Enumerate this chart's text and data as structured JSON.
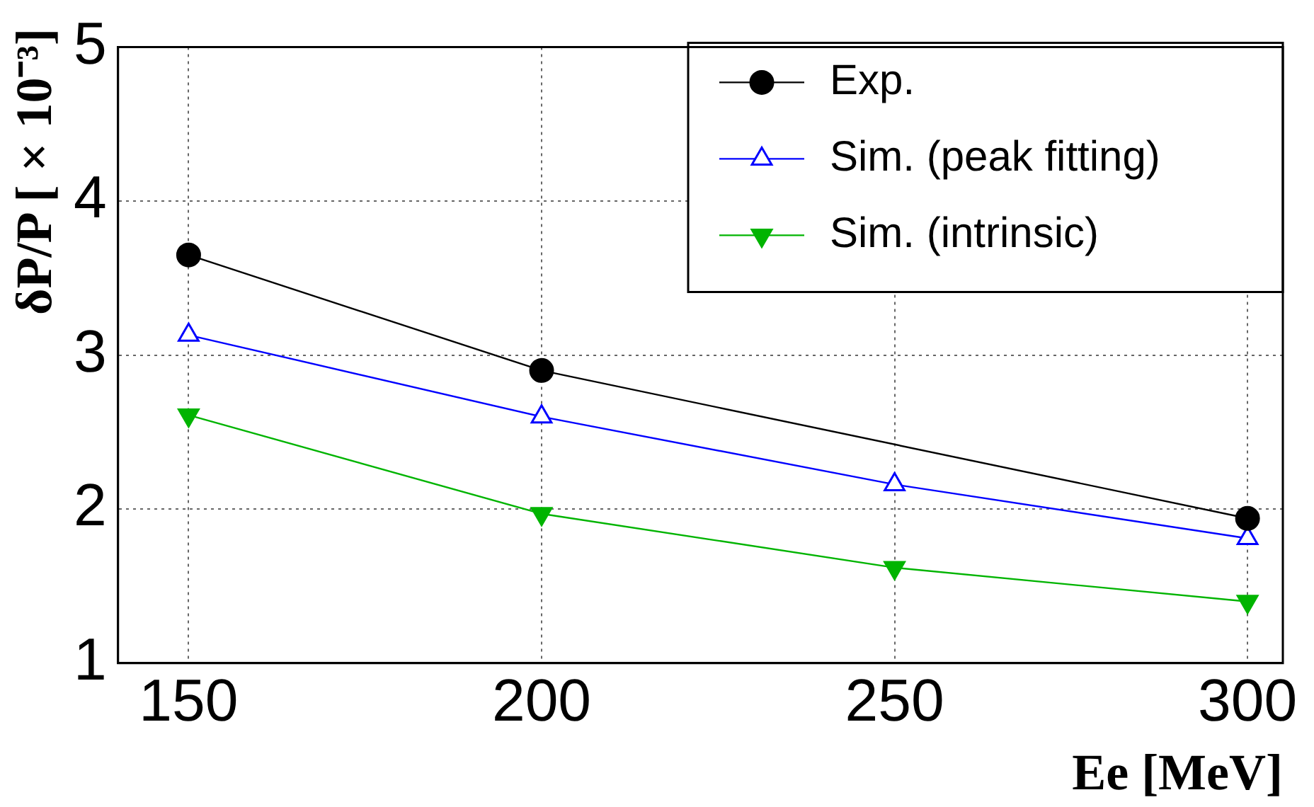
{
  "chart_data": {
    "type": "line",
    "xlabel": "Ee [MeV]",
    "ylabel": "δP/P [×10⁻³]",
    "x": [
      150,
      200,
      250,
      300
    ],
    "series": [
      {
        "name": "Exp.",
        "color": "#000000",
        "marker": "circle",
        "values": [
          3.65,
          2.9,
          null,
          1.94
        ]
      },
      {
        "name": "Sim. (peak fitting)",
        "color": "#0000ff",
        "marker": "triangle",
        "values": [
          3.13,
          2.6,
          2.16,
          1.81
        ]
      },
      {
        "name": "Sim. (intrinsic)",
        "color": "#00b400",
        "marker": "triangle-down",
        "values": [
          2.61,
          1.97,
          1.62,
          1.4
        ]
      }
    ],
    "xlim": [
      140,
      305
    ],
    "xticks": [
      150,
      200,
      250,
      300
    ],
    "ylim": [
      1,
      5
    ],
    "yticks": [
      1,
      2,
      3,
      4,
      5
    ],
    "grid": true,
    "legend": "top right",
    "line_style": "solid"
  }
}
